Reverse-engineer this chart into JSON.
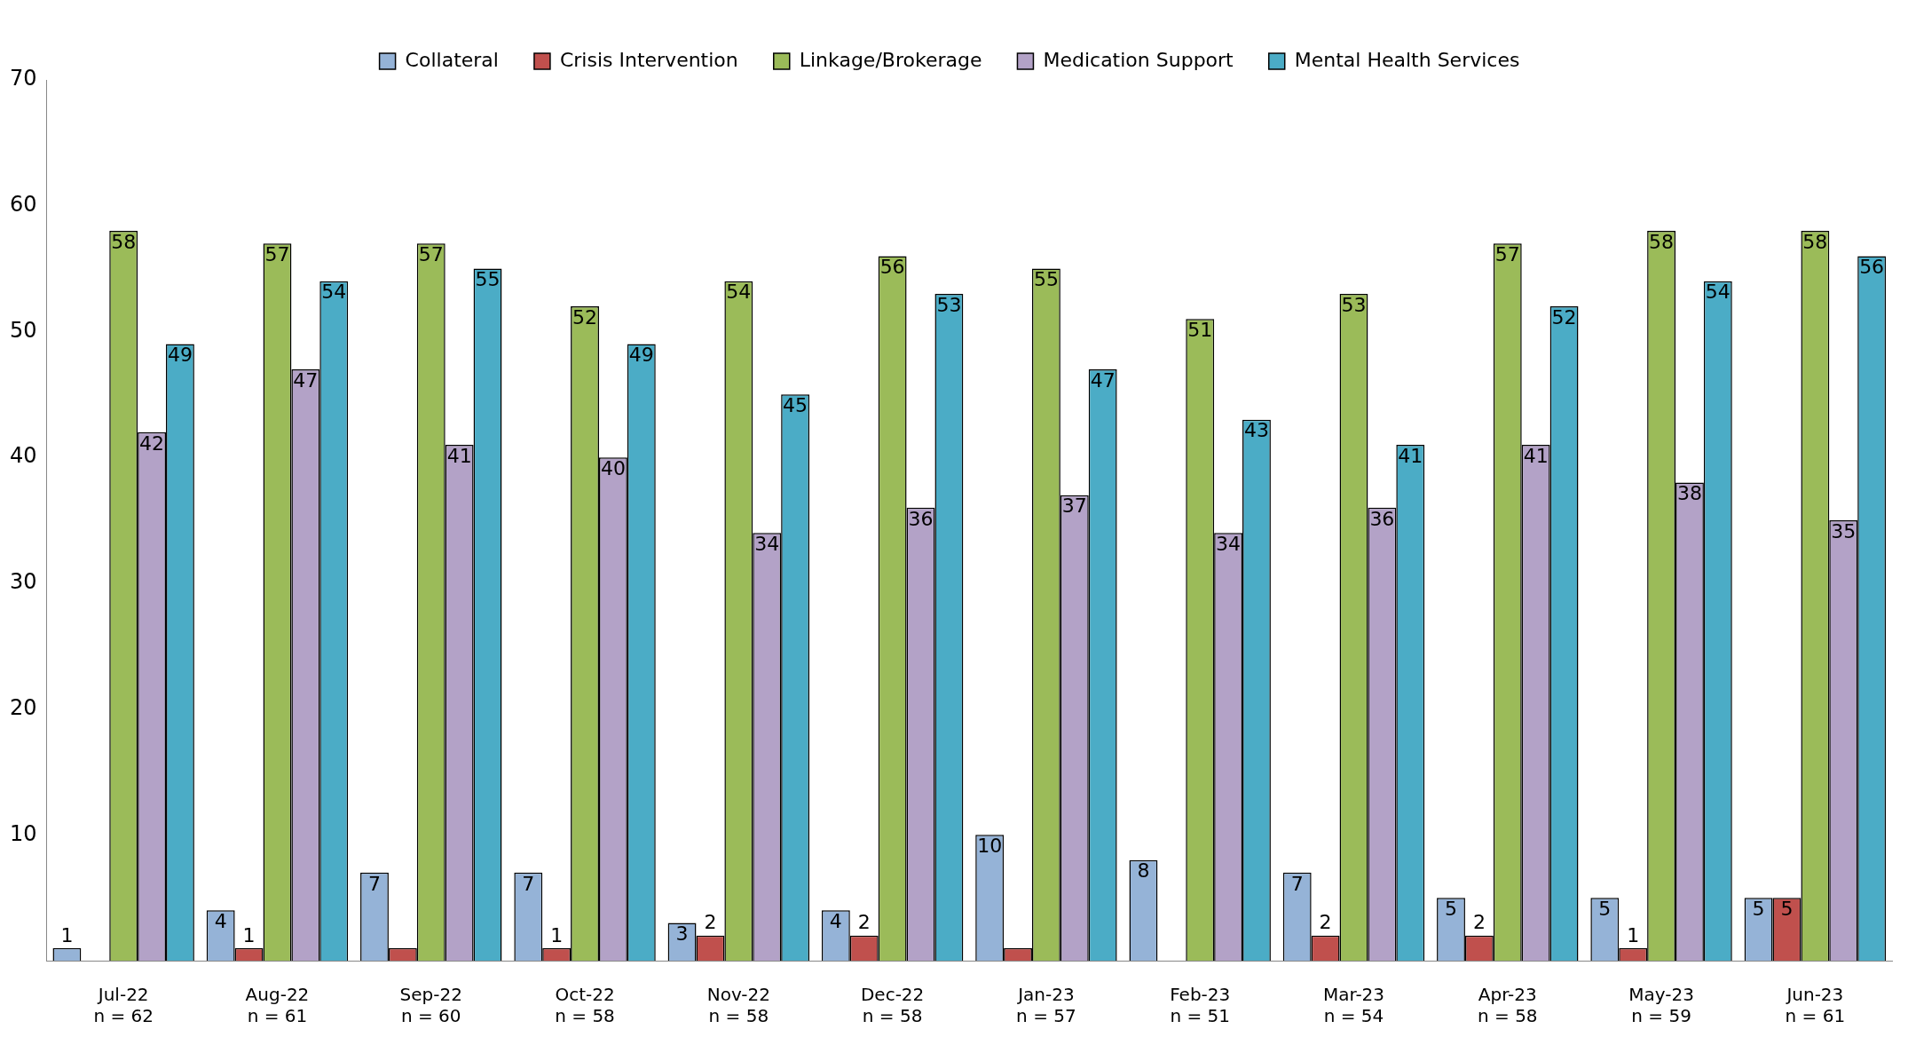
{
  "chart_data": {
    "type": "bar",
    "categories": [
      "Jul-22\nn = 62",
      "Aug-22\nn = 61",
      "Sep-22\nn = 60",
      "Oct-22\nn = 58",
      "Nov-22\nn = 58",
      "Dec-22\nn = 58",
      "Jan-23\nn = 57",
      "Feb-23\nn = 51",
      "Mar-23\nn = 54",
      "Apr-23\nn = 58",
      "May-23\nn = 59",
      "Jun-23\nn = 61"
    ],
    "series": [
      {
        "name": "Collateral",
        "color": "#95b3d7",
        "values": [
          1,
          4,
          7,
          7,
          3,
          4,
          10,
          8,
          7,
          5,
          5,
          5
        ],
        "value_labels": [
          "1",
          "4",
          "7",
          "7",
          "3",
          "4",
          "10",
          "8",
          "7",
          "5",
          "5",
          "5"
        ]
      },
      {
        "name": "Crisis Intervention",
        "color": "#c0504d",
        "values": [
          0,
          1,
          1,
          1,
          2,
          2,
          1,
          0,
          2,
          2,
          1,
          5
        ],
        "value_labels": [
          null,
          "1",
          null,
          "1",
          "2",
          "2",
          null,
          null,
          "2",
          "2",
          "1",
          "5"
        ]
      },
      {
        "name": "Linkage/Brokerage",
        "color": "#9bbb59",
        "values": [
          58,
          57,
          57,
          52,
          54,
          56,
          55,
          51,
          53,
          57,
          58,
          58
        ],
        "value_labels": [
          "58",
          "57",
          "57",
          "52",
          "54",
          "56",
          "55",
          "51",
          "53",
          "57",
          "58",
          "58"
        ]
      },
      {
        "name": "Medication Support",
        "color": "#b3a2c7",
        "values": [
          42,
          47,
          41,
          40,
          34,
          36,
          37,
          34,
          36,
          41,
          38,
          35
        ],
        "value_labels": [
          "42",
          "47",
          "41",
          "40",
          "34",
          "36",
          "37",
          "34",
          "36",
          "41",
          "38",
          "35"
        ]
      },
      {
        "name": "Mental Health Services",
        "color": "#4bacc6",
        "values": [
          49,
          54,
          55,
          49,
          45,
          53,
          47,
          43,
          41,
          52,
          54,
          56
        ],
        "value_labels": [
          "49",
          "54",
          "55",
          "49",
          "45",
          "53",
          "47",
          "43",
          "41",
          "52",
          "54",
          "56"
        ]
      }
    ],
    "ylim": [
      0,
      70
    ],
    "yticks": [
      10,
      20,
      30,
      40,
      50,
      60,
      70
    ],
    "grid": false,
    "legend": "top"
  }
}
